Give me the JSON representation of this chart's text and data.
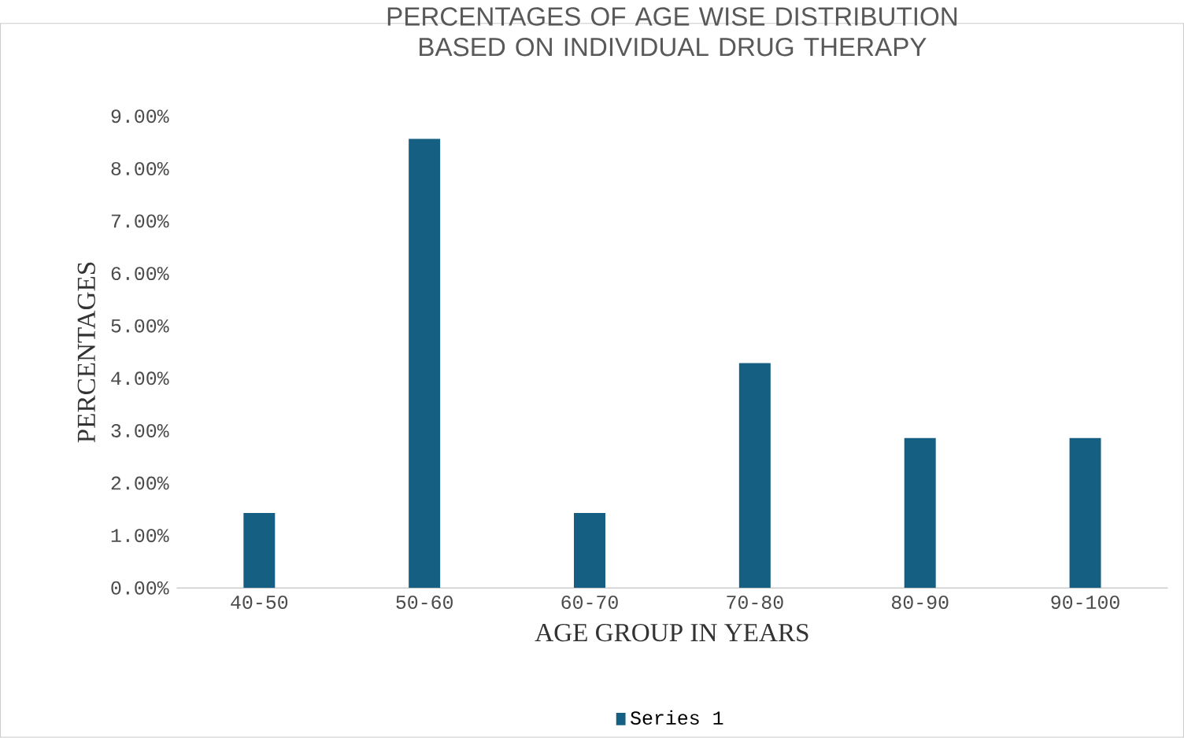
{
  "chart_data": {
    "type": "bar",
    "title": "PERCENTAGES OF AGE WISE DISTRIBUTION BASED ON INDIVIDUAL DRUG THERAPY",
    "xlabel": "AGE GROUP IN YEARS",
    "ylabel": "PERCENTAGES",
    "categories": [
      "40-50",
      "50-60",
      "60-70",
      "70-80",
      "80-90",
      "90-100"
    ],
    "series": [
      {
        "name": "Series 1",
        "color": "#145f82",
        "values": [
          1.43,
          8.57,
          1.43,
          4.29,
          2.86,
          2.86
        ]
      }
    ],
    "ylim": [
      0,
      9
    ],
    "yticks": [
      {
        "value": 0,
        "label": "0.00%"
      },
      {
        "value": 1,
        "label": "1.00%"
      },
      {
        "value": 2,
        "label": "2.00%"
      },
      {
        "value": 3,
        "label": "3.00%"
      },
      {
        "value": 4,
        "label": "4.00%"
      },
      {
        "value": 5,
        "label": "5.00%"
      },
      {
        "value": 6,
        "label": "6.00%"
      },
      {
        "value": 7,
        "label": "7.00%"
      },
      {
        "value": 8,
        "label": "8.00%"
      },
      {
        "value": 9,
        "label": "9.00%"
      }
    ],
    "legend": "bottom"
  }
}
